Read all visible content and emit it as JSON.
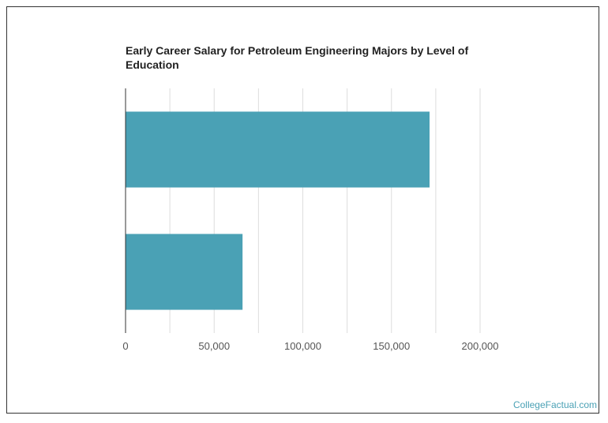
{
  "chart_data": {
    "type": "bar",
    "orientation": "horizontal",
    "title": "Early Career Salary for Petroleum Engineering Majors by Level of Education",
    "categories": [
      "",
      ""
    ],
    "values": [
      171500,
      66000
    ],
    "xlim": [
      0,
      200000
    ],
    "x_ticks": [
      0,
      50000,
      100000,
      150000,
      200000
    ],
    "x_tick_labels": [
      "0",
      "50,000",
      "100,000",
      "150,000",
      "200,000"
    ],
    "xlabel": "",
    "ylabel": "",
    "grid": true,
    "bar_color": "#4aa1b5",
    "grid_color": "#dddddd"
  },
  "credit": "CollegeFactual.com"
}
